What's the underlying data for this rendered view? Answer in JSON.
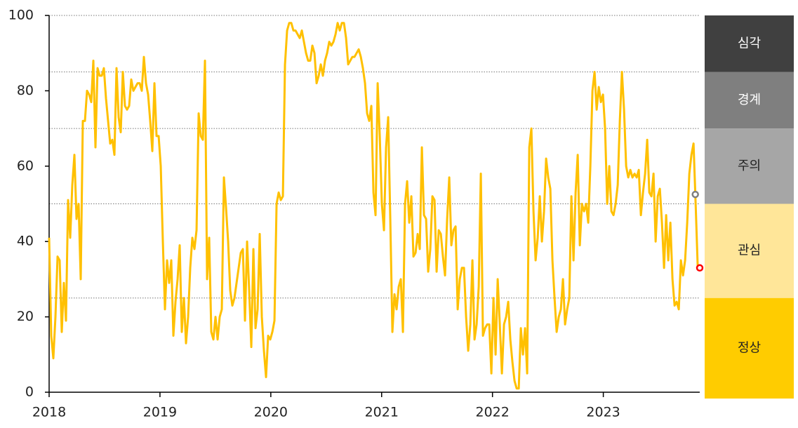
{
  "chart_data": {
    "type": "line",
    "x": [
      2018,
      2018.019,
      2018.038,
      2018.057,
      2018.076,
      2018.095,
      2018.114,
      2018.133,
      2018.152,
      2018.171,
      2018.19,
      2018.209,
      2018.228,
      2018.247,
      2018.266,
      2018.285,
      2018.304,
      2018.323,
      2018.342,
      2018.361,
      2018.38,
      2018.399,
      2018.418,
      2018.437,
      2018.456,
      2018.475,
      2018.494,
      2018.513,
      2018.532,
      2018.551,
      2018.57,
      2018.589,
      2018.608,
      2018.627,
      2018.646,
      2018.665,
      2018.684,
      2018.703,
      2018.722,
      2018.741,
      2018.76,
      2018.779,
      2018.798,
      2018.817,
      2018.836,
      2018.855,
      2018.874,
      2018.893,
      2018.912,
      2018.931,
      2018.95,
      2018.969,
      2018.988,
      2019.007,
      2019.026,
      2019.045,
      2019.064,
      2019.083,
      2019.102,
      2019.121,
      2019.14,
      2019.159,
      2019.178,
      2019.197,
      2019.216,
      2019.235,
      2019.254,
      2019.273,
      2019.292,
      2019.311,
      2019.33,
      2019.349,
      2019.368,
      2019.387,
      2019.406,
      2019.425,
      2019.444,
      2019.463,
      2019.482,
      2019.501,
      2019.52,
      2019.539,
      2019.558,
      2019.577,
      2019.596,
      2019.615,
      2019.634,
      2019.653,
      2019.672,
      2019.691,
      2019.71,
      2019.729,
      2019.748,
      2019.767,
      2019.786,
      2019.805,
      2019.824,
      2019.843,
      2019.862,
      2019.881,
      2019.9,
      2019.919,
      2019.938,
      2019.957,
      2019.976,
      2019.995,
      2020.014,
      2020.033,
      2020.052,
      2020.071,
      2020.09,
      2020.109,
      2020.128,
      2020.147,
      2020.166,
      2020.185,
      2020.204,
      2020.223,
      2020.242,
      2020.261,
      2020.28,
      2020.299,
      2020.318,
      2020.337,
      2020.356,
      2020.375,
      2020.394,
      2020.413,
      2020.432,
      2020.451,
      2020.47,
      2020.489,
      2020.508,
      2020.527,
      2020.546,
      2020.565,
      2020.584,
      2020.603,
      2020.622,
      2020.641,
      2020.66,
      2020.679,
      2020.698,
      2020.717,
      2020.736,
      2020.755,
      2020.774,
      2020.793,
      2020.812,
      2020.831,
      2020.85,
      2020.869,
      2020.888,
      2020.907,
      2020.926,
      2020.945,
      2020.964,
      2020.983,
      2021.002,
      2021.021,
      2021.04,
      2021.059,
      2021.078,
      2021.097,
      2021.116,
      2021.135,
      2021.154,
      2021.173,
      2021.192,
      2021.211,
      2021.23,
      2021.249,
      2021.268,
      2021.287,
      2021.306,
      2021.325,
      2021.344,
      2021.363,
      2021.382,
      2021.401,
      2021.42,
      2021.439,
      2021.458,
      2021.477,
      2021.496,
      2021.515,
      2021.534,
      2021.553,
      2021.572,
      2021.591,
      2021.61,
      2021.629,
      2021.648,
      2021.667,
      2021.686,
      2021.705,
      2021.724,
      2021.743,
      2021.762,
      2021.781,
      2021.8,
      2021.819,
      2021.838,
      2021.857,
      2021.876,
      2021.895,
      2021.914,
      2021.933,
      2021.952,
      2021.971,
      2021.99,
      2022.009,
      2022.028,
      2022.047,
      2022.066,
      2022.085,
      2022.104,
      2022.123,
      2022.142,
      2022.161,
      2022.18,
      2022.199,
      2022.218,
      2022.237,
      2022.256,
      2022.275,
      2022.294,
      2022.313,
      2022.332,
      2022.351,
      2022.37,
      2022.389,
      2022.408,
      2022.427,
      2022.446,
      2022.465,
      2022.484,
      2022.503,
      2022.522,
      2022.541,
      2022.56,
      2022.579,
      2022.598,
      2022.617,
      2022.636,
      2022.655,
      2022.674,
      2022.693,
      2022.712,
      2022.731,
      2022.75,
      2022.769,
      2022.788,
      2022.807,
      2022.826,
      2022.845,
      2022.864,
      2022.883,
      2022.902,
      2022.921,
      2022.94,
      2022.959,
      2022.978,
      2022.997,
      2023.016,
      2023.035,
      2023.054,
      2023.073,
      2023.092,
      2023.111,
      2023.13,
      2023.149,
      2023.168,
      2023.187,
      2023.206,
      2023.225,
      2023.244,
      2023.263,
      2023.282,
      2023.301,
      2023.32,
      2023.339,
      2023.358,
      2023.377,
      2023.396,
      2023.415,
      2023.434,
      2023.453,
      2023.472,
      2023.491,
      2023.51,
      2023.529,
      2023.548,
      2023.567,
      2023.586,
      2023.605,
      2023.624,
      2023.643,
      2023.662,
      2023.681,
      2023.7,
      2023.719,
      2023.738,
      2023.757,
      2023.776,
      2023.795,
      2023.814,
      2023.833,
      2023.852
    ],
    "series": [
      {
        "color": "#ffc000",
        "values": [
          41,
          15,
          9,
          20,
          36,
          35,
          16,
          29,
          19,
          51,
          41,
          55,
          63,
          46,
          50,
          30,
          72,
          72,
          80,
          79,
          77,
          88,
          65,
          86,
          84,
          84,
          86,
          78,
          72,
          66,
          67,
          63,
          86,
          73,
          69,
          85,
          76,
          75,
          76,
          83,
          80,
          81,
          82,
          82,
          80,
          89,
          82,
          79,
          72,
          64,
          82,
          68,
          68,
          60,
          40,
          22,
          35,
          29,
          35,
          15,
          24,
          30,
          39,
          16,
          25,
          13,
          20,
          33,
          41,
          38,
          43,
          74,
          68,
          67,
          88,
          30,
          41,
          16,
          14,
          20,
          14,
          20,
          22,
          57,
          49,
          40,
          27,
          23,
          25,
          29,
          33,
          37,
          38,
          19,
          40,
          27,
          12,
          38,
          17,
          22,
          42,
          20,
          11,
          4,
          15,
          14,
          16,
          19,
          50,
          53,
          51,
          52,
          87,
          96,
          98,
          98,
          96,
          96,
          95,
          94,
          96,
          93,
          90,
          88,
          88,
          92,
          90,
          82,
          84,
          87,
          84,
          88,
          90,
          93,
          92,
          93,
          95,
          98,
          96,
          98,
          98,
          94,
          87,
          88,
          89,
          89,
          90,
          91,
          89,
          86,
          82,
          74,
          72,
          76,
          53,
          47,
          82,
          68,
          50,
          43,
          65,
          73,
          46,
          16,
          26,
          22,
          28,
          30,
          16,
          50,
          56,
          45,
          52,
          36,
          37,
          42,
          38,
          65,
          47,
          46,
          32,
          38,
          52,
          51,
          32,
          43,
          42,
          36,
          31,
          46,
          57,
          39,
          43,
          44,
          22,
          30,
          33,
          33,
          20,
          11,
          18,
          35,
          14,
          18,
          28,
          58,
          15,
          17,
          18,
          18,
          5,
          25,
          10,
          30,
          18,
          5,
          18,
          20,
          24,
          14,
          8,
          3,
          1,
          1,
          17,
          10,
          17,
          5,
          65,
          70,
          48,
          35,
          41,
          52,
          40,
          48,
          62,
          57,
          54,
          35,
          25,
          16,
          20,
          22,
          30,
          18,
          22,
          25,
          52,
          35,
          53,
          63,
          39,
          50,
          48,
          50,
          45,
          60,
          80,
          85,
          75,
          81,
          77,
          79,
          70,
          50,
          60,
          48,
          47,
          50,
          55,
          72,
          85,
          75,
          60,
          57,
          59,
          57,
          58,
          57,
          59,
          47,
          53,
          58,
          67,
          53,
          52,
          58,
          40,
          52,
          54,
          45,
          33,
          47,
          35,
          45,
          30,
          23,
          24,
          22,
          35,
          31,
          35,
          45,
          58,
          63,
          66,
          50,
          33
        ]
      }
    ],
    "markers": [
      {
        "x": 2023.83,
        "value": 52.5,
        "color": "#7f7f7f"
      },
      {
        "x": 2023.87,
        "value": 33,
        "color": "#ff0000"
      }
    ],
    "zones": [
      {
        "label": "심각",
        "from": 85,
        "to": 100,
        "color": "#404040",
        "text_color": "#ffffff"
      },
      {
        "label": "경계",
        "from": 70,
        "to": 85,
        "color": "#7f7f7f",
        "text_color": "#ffffff"
      },
      {
        "label": "주의",
        "from": 50,
        "to": 70,
        "color": "#a6a6a6",
        "text_color": "#222222"
      },
      {
        "label": "관심",
        "from": 25,
        "to": 50,
        "color": "#ffe699",
        "text_color": "#222222"
      },
      {
        "label": "정상",
        "from": 0,
        "to": 25,
        "color": "#ffcc00",
        "text_color": "#222222"
      }
    ],
    "xlim": [
      2018,
      2023.87
    ],
    "xticks": [
      2018,
      2019,
      2020,
      2021,
      2022,
      2023
    ],
    "ylim": [
      0,
      100
    ],
    "yticks": [
      0,
      20,
      40,
      60,
      80,
      100
    ]
  }
}
